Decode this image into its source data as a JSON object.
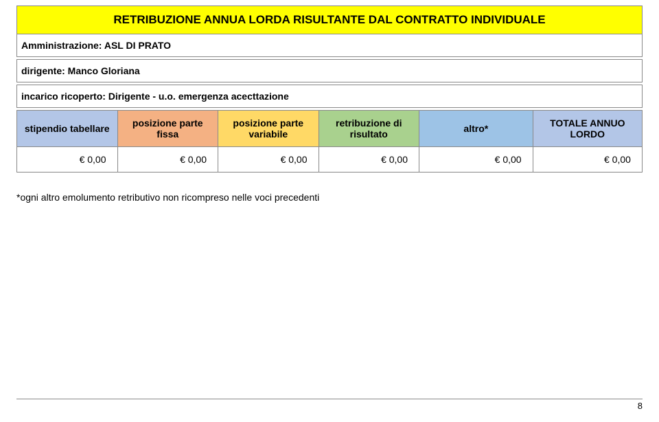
{
  "title": "RETRIBUZIONE ANNUA LORDA RISULTANTE DAL CONTRATTO INDIVIDUALE",
  "administration_line": "Amministrazione: ASL DI PRATO",
  "dirigente_line": "dirigente: Manco Gloriana",
  "incarico_line": "incarico ricoperto: Dirigente - u.o. emergenza acecttazione",
  "headers": {
    "c1": "stipendio tabellare",
    "c2": "posizione parte fissa",
    "c3": "posizione parte variabile",
    "c4": "retribuzione di risultato",
    "c5": "altro*",
    "c6": "TOTALE ANNUO LORDO"
  },
  "header_colors": {
    "c1": "#b3c6e7",
    "c2": "#f4b183",
    "c3": "#ffd966",
    "c4": "#a9d18e",
    "c5": "#9dc3e6",
    "c6": "#b3c6e7"
  },
  "data": {
    "c1": "€ 0,00",
    "c2": "€ 0,00",
    "c3": "€ 0,00",
    "c4": "€ 0,00",
    "c5": "€ 0,00",
    "c6": "€ 0,00"
  },
  "footnote": "*ogni altro emolumento retributivo non ricompreso nelle voci precedenti",
  "page_number": "8"
}
